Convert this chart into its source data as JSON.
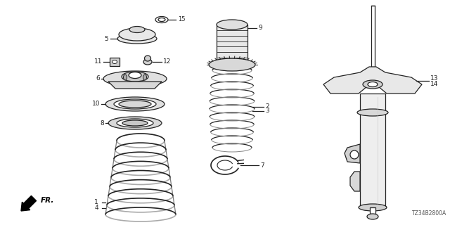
{
  "bg_color": "#ffffff",
  "line_color": "#222222",
  "diagram_code": "TZ34B2800A",
  "fr_label": "FR.",
  "figsize": [
    6.4,
    3.2
  ],
  "dpi": 100,
  "xlim": [
    0,
    640
  ],
  "ylim": [
    0,
    320
  ]
}
